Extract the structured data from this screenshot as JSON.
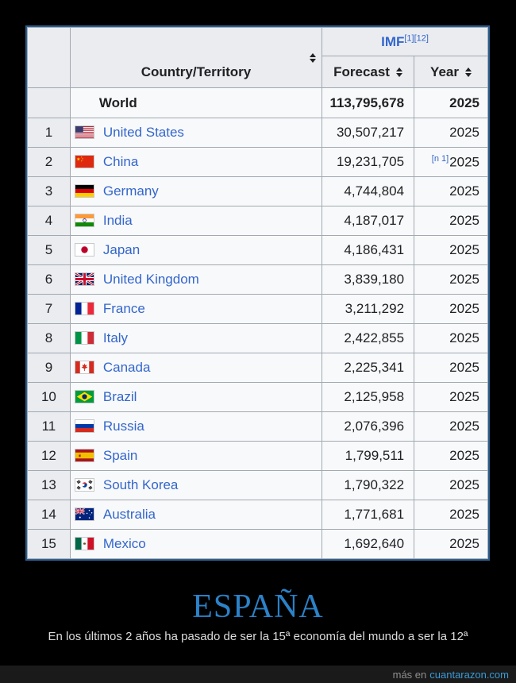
{
  "colors": {
    "link_blue": "#3366cc",
    "table_border_blue": "#2b5d8e",
    "title_blue": "#2b82c9",
    "header_bg": "#eaecf0",
    "cell_bg": "#f8f9fa"
  },
  "table": {
    "group_header": {
      "label": "IMF",
      "refs": [
        "[1]",
        "[12]"
      ]
    },
    "columns": {
      "country": "Country/Territory",
      "forecast": "Forecast",
      "year": "Year"
    },
    "world_row": {
      "label": "World",
      "forecast": "113,795,678",
      "year": "2025"
    },
    "rows": [
      {
        "rank": "1",
        "flag": "us",
        "country": "United States",
        "forecast": "30,507,217",
        "note": "",
        "year": "2025"
      },
      {
        "rank": "2",
        "flag": "cn",
        "country": "China",
        "forecast": "19,231,705",
        "note": "[n 1]",
        "year": "2025"
      },
      {
        "rank": "3",
        "flag": "de",
        "country": "Germany",
        "forecast": "4,744,804",
        "note": "",
        "year": "2025"
      },
      {
        "rank": "4",
        "flag": "in",
        "country": "India",
        "forecast": "4,187,017",
        "note": "",
        "year": "2025"
      },
      {
        "rank": "5",
        "flag": "jp",
        "country": "Japan",
        "forecast": "4,186,431",
        "note": "",
        "year": "2025"
      },
      {
        "rank": "6",
        "flag": "gb",
        "country": "United Kingdom",
        "forecast": "3,839,180",
        "note": "",
        "year": "2025"
      },
      {
        "rank": "7",
        "flag": "fr",
        "country": "France",
        "forecast": "3,211,292",
        "note": "",
        "year": "2025"
      },
      {
        "rank": "8",
        "flag": "it",
        "country": "Italy",
        "forecast": "2,422,855",
        "note": "",
        "year": "2025"
      },
      {
        "rank": "9",
        "flag": "ca",
        "country": "Canada",
        "forecast": "2,225,341",
        "note": "",
        "year": "2025"
      },
      {
        "rank": "10",
        "flag": "br",
        "country": "Brazil",
        "forecast": "2,125,958",
        "note": "",
        "year": "2025"
      },
      {
        "rank": "11",
        "flag": "ru",
        "country": "Russia",
        "forecast": "2,076,396",
        "note": "",
        "year": "2025"
      },
      {
        "rank": "12",
        "flag": "es",
        "country": "Spain",
        "forecast": "1,799,511",
        "note": "",
        "year": "2025"
      },
      {
        "rank": "13",
        "flag": "kr",
        "country": "South Korea",
        "forecast": "1,790,322",
        "note": "",
        "year": "2025"
      },
      {
        "rank": "14",
        "flag": "au",
        "country": "Australia",
        "forecast": "1,771,681",
        "note": "",
        "year": "2025"
      },
      {
        "rank": "15",
        "flag": "mx",
        "country": "Mexico",
        "forecast": "1,692,640",
        "note": "",
        "year": "2025"
      }
    ]
  },
  "caption": {
    "title": "ESPAÑA",
    "subtitle": "En los últimos 2 años ha pasado de ser la 15ª economía del mundo a ser la 12ª"
  },
  "footer": {
    "prefix": "más en",
    "site": "cuantarazon.com"
  }
}
